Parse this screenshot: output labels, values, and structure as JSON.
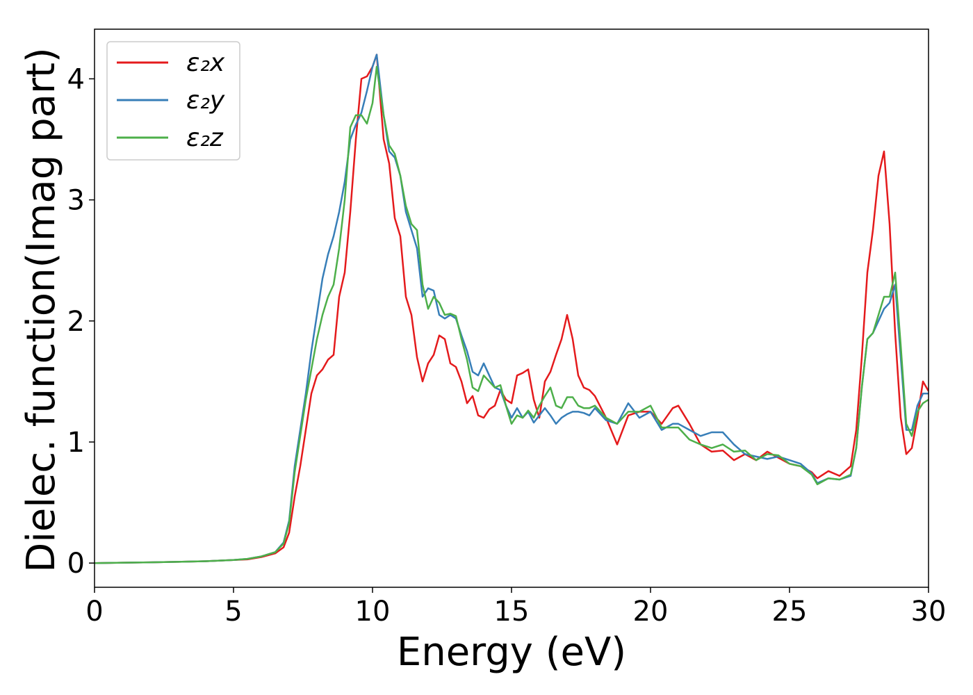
{
  "chart_data": {
    "type": "line",
    "xlabel": "Energy (eV)",
    "ylabel": "Dielec. function(Imag part)",
    "xlim": [
      0,
      30
    ],
    "ylim": [
      -0.2,
      4.41
    ],
    "xticks": [
      0,
      5,
      10,
      15,
      20,
      25,
      30
    ],
    "yticks": [
      0,
      1,
      2,
      3,
      4
    ],
    "grid": false,
    "legend": "upper left",
    "x": [
      0,
      1,
      2,
      3,
      4,
      5,
      5.5,
      6,
      6.5,
      6.8,
      7,
      7.2,
      7.4,
      7.6,
      7.8,
      8,
      8.2,
      8.4,
      8.6,
      8.8,
      9,
      9.2,
      9.4,
      9.6,
      9.8,
      10,
      10.15,
      10.4,
      10.6,
      10.8,
      11,
      11.2,
      11.4,
      11.6,
      11.8,
      12,
      12.2,
      12.4,
      12.6,
      12.8,
      13,
      13.2,
      13.4,
      13.6,
      13.8,
      14,
      14.2,
      14.4,
      14.6,
      14.8,
      15,
      15.2,
      15.4,
      15.6,
      15.8,
      16,
      16.2,
      16.4,
      16.6,
      16.8,
      17,
      17.2,
      17.4,
      17.6,
      17.8,
      18,
      18.4,
      18.8,
      19.2,
      19.6,
      20,
      20.4,
      20.8,
      21,
      21.4,
      21.8,
      22.2,
      22.6,
      23,
      23.4,
      23.8,
      24.2,
      24.6,
      25,
      25.4,
      25.8,
      26,
      26.4,
      26.8,
      27.2,
      27.4,
      27.6,
      27.8,
      28,
      28.2,
      28.4,
      28.6,
      28.8,
      29,
      29.2,
      29.4,
      29.6,
      29.8,
      30
    ],
    "series": [
      {
        "name": "ε₂x",
        "color": "#e41a1c",
        "values": [
          0,
          0.003,
          0.006,
          0.01,
          0.015,
          0.025,
          0.03,
          0.05,
          0.08,
          0.13,
          0.25,
          0.55,
          0.8,
          1.1,
          1.4,
          1.55,
          1.6,
          1.68,
          1.72,
          2.2,
          2.4,
          2.9,
          3.5,
          4.0,
          4.02,
          4.1,
          4.2,
          3.5,
          3.3,
          2.85,
          2.7,
          2.2,
          2.05,
          1.7,
          1.5,
          1.65,
          1.72,
          1.88,
          1.85,
          1.65,
          1.62,
          1.5,
          1.32,
          1.38,
          1.22,
          1.2,
          1.27,
          1.3,
          1.43,
          1.35,
          1.32,
          1.55,
          1.57,
          1.6,
          1.35,
          1.2,
          1.5,
          1.58,
          1.72,
          1.85,
          2.05,
          1.85,
          1.55,
          1.45,
          1.43,
          1.38,
          1.2,
          0.98,
          1.22,
          1.25,
          1.25,
          1.15,
          1.28,
          1.3,
          1.15,
          0.98,
          0.92,
          0.93,
          0.85,
          0.9,
          0.85,
          0.92,
          0.87,
          0.82,
          0.8,
          0.75,
          0.7,
          0.76,
          0.72,
          0.8,
          1.1,
          1.7,
          2.4,
          2.75,
          3.2,
          3.4,
          2.8,
          1.9,
          1.2,
          0.9,
          0.95,
          1.2,
          1.5,
          1.42
        ]
      },
      {
        "name": "ε₂y",
        "color": "#377eb8",
        "values": [
          0,
          0.003,
          0.006,
          0.01,
          0.015,
          0.025,
          0.035,
          0.055,
          0.09,
          0.17,
          0.35,
          0.8,
          1.1,
          1.4,
          1.75,
          2.05,
          2.35,
          2.55,
          2.7,
          2.9,
          3.15,
          3.5,
          3.62,
          3.72,
          3.9,
          4.1,
          4.2,
          3.7,
          3.4,
          3.35,
          3.2,
          2.9,
          2.75,
          2.6,
          2.2,
          2.27,
          2.25,
          2.05,
          2.02,
          2.05,
          2.02,
          1.88,
          1.75,
          1.58,
          1.55,
          1.65,
          1.55,
          1.45,
          1.43,
          1.3,
          1.2,
          1.28,
          1.2,
          1.25,
          1.16,
          1.22,
          1.28,
          1.22,
          1.15,
          1.2,
          1.23,
          1.25,
          1.25,
          1.24,
          1.22,
          1.28,
          1.18,
          1.15,
          1.32,
          1.2,
          1.25,
          1.1,
          1.15,
          1.15,
          1.1,
          1.05,
          1.08,
          1.08,
          0.98,
          0.9,
          0.88,
          0.86,
          0.88,
          0.85,
          0.82,
          0.74,
          0.66,
          0.7,
          0.69,
          0.72,
          0.95,
          1.45,
          1.85,
          1.9,
          2.0,
          2.1,
          2.15,
          2.3,
          1.7,
          1.1,
          1.1,
          1.3,
          1.4,
          1.4
        ]
      },
      {
        "name": "ε₂z",
        "color": "#4daf4a",
        "values": [
          0,
          0.003,
          0.006,
          0.01,
          0.015,
          0.025,
          0.035,
          0.055,
          0.09,
          0.16,
          0.33,
          0.75,
          1.05,
          1.35,
          1.6,
          1.85,
          2.05,
          2.2,
          2.3,
          2.6,
          3.0,
          3.6,
          3.7,
          3.7,
          3.63,
          3.8,
          4.1,
          3.7,
          3.45,
          3.38,
          3.2,
          2.95,
          2.8,
          2.75,
          2.3,
          2.1,
          2.2,
          2.15,
          2.05,
          2.06,
          2.04,
          1.85,
          1.68,
          1.45,
          1.42,
          1.55,
          1.5,
          1.45,
          1.47,
          1.3,
          1.15,
          1.22,
          1.2,
          1.26,
          1.2,
          1.3,
          1.38,
          1.45,
          1.3,
          1.28,
          1.37,
          1.37,
          1.3,
          1.28,
          1.28,
          1.3,
          1.2,
          1.15,
          1.25,
          1.25,
          1.3,
          1.12,
          1.12,
          1.12,
          1.02,
          0.98,
          0.95,
          0.98,
          0.92,
          0.93,
          0.85,
          0.9,
          0.89,
          0.82,
          0.8,
          0.73,
          0.65,
          0.7,
          0.69,
          0.73,
          0.95,
          1.45,
          1.85,
          1.9,
          2.05,
          2.2,
          2.2,
          2.4,
          1.8,
          1.15,
          1.05,
          1.25,
          1.32,
          1.35
        ]
      }
    ]
  }
}
